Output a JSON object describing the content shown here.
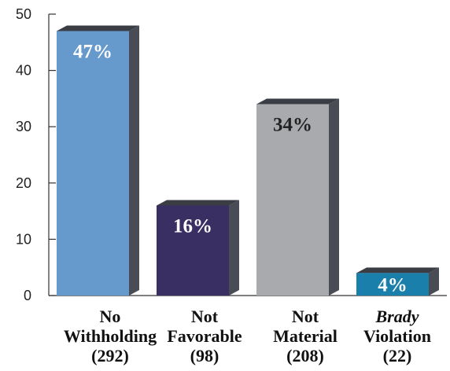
{
  "chart_data": {
    "type": "bar",
    "title": "",
    "xlabel": "",
    "ylabel": "",
    "ylim": [
      0,
      50
    ],
    "yticks": [
      0,
      10,
      20,
      30,
      40,
      50
    ],
    "grid": false,
    "legend": "none",
    "categories": [
      {
        "lines": [
          "No",
          "Withholding",
          "(292)"
        ],
        "italic_first_line": false
      },
      {
        "lines": [
          "Not",
          "Favorable",
          "(98)"
        ],
        "italic_first_line": false
      },
      {
        "lines": [
          "Not",
          "Material",
          "(208)"
        ],
        "italic_first_line": false
      },
      {
        "lines": [
          "Brady",
          "Violation",
          "(22)"
        ],
        "italic_first_line": true
      }
    ],
    "values": [
      47,
      16,
      34,
      4
    ],
    "data_labels": [
      "47%",
      "16%",
      "34%",
      "4%"
    ],
    "colors": {
      "bars": [
        "#6699cc",
        "#3a2f62",
        "#a8aaad",
        "#1a7fab"
      ],
      "bar_tops": [
        "#3b3d45",
        "#3b3d45",
        "#3b3d45",
        "#3b3d45"
      ],
      "bar_sides": [
        "#4a4c55",
        "#4a4c55",
        "#4a4c55",
        "#4a4c55"
      ],
      "label_colors": [
        "#ffffff",
        "#ffffff",
        "#222222",
        "#ffffff"
      ]
    }
  }
}
